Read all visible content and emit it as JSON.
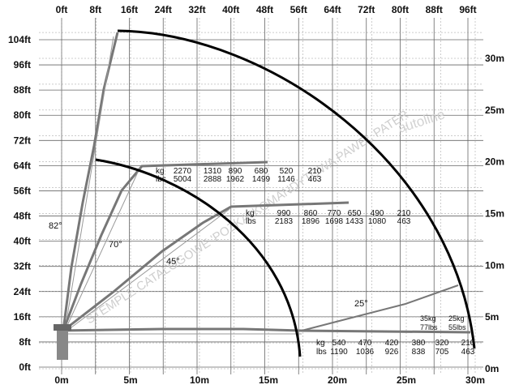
{
  "axes": {
    "top_feet": [
      "0ft",
      "8ft",
      "16ft",
      "24ft",
      "32ft",
      "40ft",
      "48ft",
      "56ft",
      "64ft",
      "72ft",
      "80ft",
      "88ft",
      "96ft"
    ],
    "bottom_meters": [
      "0m",
      "5m",
      "10m",
      "15m",
      "20m",
      "25m",
      "30m"
    ],
    "left_feet": [
      "104ft",
      "96ft",
      "88ft",
      "80ft",
      "72ft",
      "64ft",
      "56ft",
      "48ft",
      "40ft",
      "32ft",
      "24ft",
      "16ft",
      "8ft",
      "0ft"
    ],
    "right_meters": [
      "30m",
      "25m",
      "20m",
      "15m",
      "10m",
      "5m",
      "0m"
    ]
  },
  "angles": {
    "a82": "82°",
    "a70": "70°",
    "a45": "45°",
    "a25": "25°"
  },
  "load_tables": {
    "row1": {
      "kg": [
        "kg",
        "2270",
        "1310",
        "890",
        "680",
        "520",
        "210"
      ],
      "lbs": [
        "lbs",
        "5004",
        "2888",
        "1962",
        "1499",
        "1146",
        "463"
      ]
    },
    "row2": {
      "kg": [
        "kg",
        "990",
        "860",
        "770",
        "650",
        "490",
        "210"
      ],
      "lbs": [
        "lbs",
        "2183",
        "1896",
        "1698",
        "1433",
        "1080",
        "463"
      ]
    },
    "row3": {
      "kg": [
        "kg",
        "540",
        "470",
        "420",
        "380",
        "320",
        "210"
      ],
      "lbs": [
        "lbs",
        "1190",
        "1036",
        "926",
        "838",
        "705",
        "463"
      ]
    },
    "jib": {
      "kg": [
        "35kg",
        "25kg"
      ],
      "lbs": [
        "77lbs",
        "55lbs"
      ]
    }
  },
  "watermark": "STEMPLE CATALOGOWE 'POZKA' KOMANDYTOWA PAWEŁ PATER",
  "brand_mark": "autoline",
  "colors": {
    "grid": "#555555",
    "envelope": "#000000",
    "boom": "#888888",
    "watermark": "#c9c9c9"
  }
}
